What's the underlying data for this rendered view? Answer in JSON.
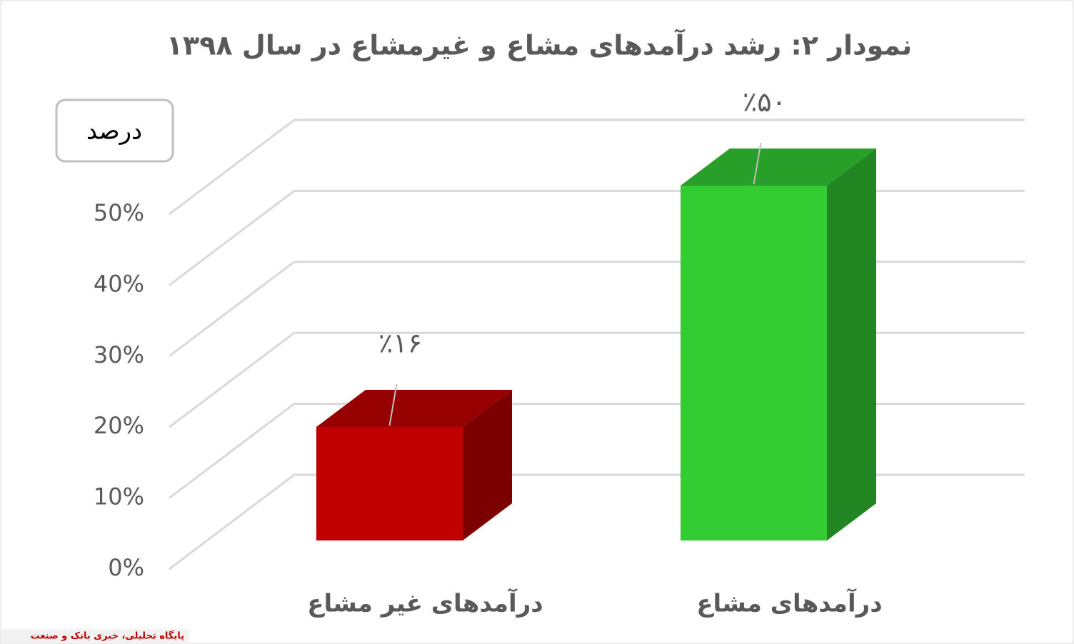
{
  "chart_data": {
    "type": "bar3d",
    "title": "نمودار ۲: رشد درآمدهای مشاع و غیرمشاع در سال ۱۳۹۸",
    "y_label": "درصد",
    "categories": [
      "درآمدهای غیر مشاع",
      "درآمدهای مشاع"
    ],
    "values": [
      16,
      50
    ],
    "value_labels": [
      "٪۱۶",
      "٪۵۰"
    ],
    "colors": [
      "#c00000",
      "#33cc33"
    ],
    "ylim": [
      0,
      50
    ],
    "yticks": [
      {
        "value": 0,
        "label": "0%"
      },
      {
        "value": 10,
        "label": "10%"
      },
      {
        "value": 20,
        "label": "20%"
      },
      {
        "value": 30,
        "label": "30%"
      },
      {
        "value": 40,
        "label": "40%"
      },
      {
        "value": 50,
        "label": "50%"
      }
    ],
    "grid": true
  },
  "watermark": "پایگاه تحلیلی، خبری بانک و صنعت"
}
